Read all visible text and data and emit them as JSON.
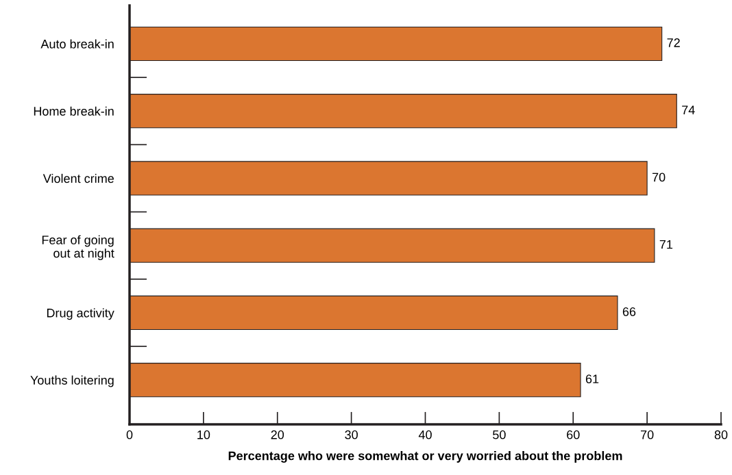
{
  "chart_data": {
    "type": "bar",
    "orientation": "horizontal",
    "categories": [
      "Auto break-in",
      "Home break-in",
      "Violent crime",
      "Fear of going\nout at night",
      "Drug activity",
      "Youths loitering"
    ],
    "values": [
      72,
      74,
      70,
      71,
      66,
      61
    ],
    "color": "#db7630",
    "xlabel": "Percentage who were somewhat or very worried about the problem",
    "xlim": [
      0,
      80
    ],
    "xticks": [
      0,
      10,
      20,
      30,
      40,
      50,
      60,
      70,
      80
    ],
    "data_labels": true,
    "grid": false,
    "legend": false
  }
}
